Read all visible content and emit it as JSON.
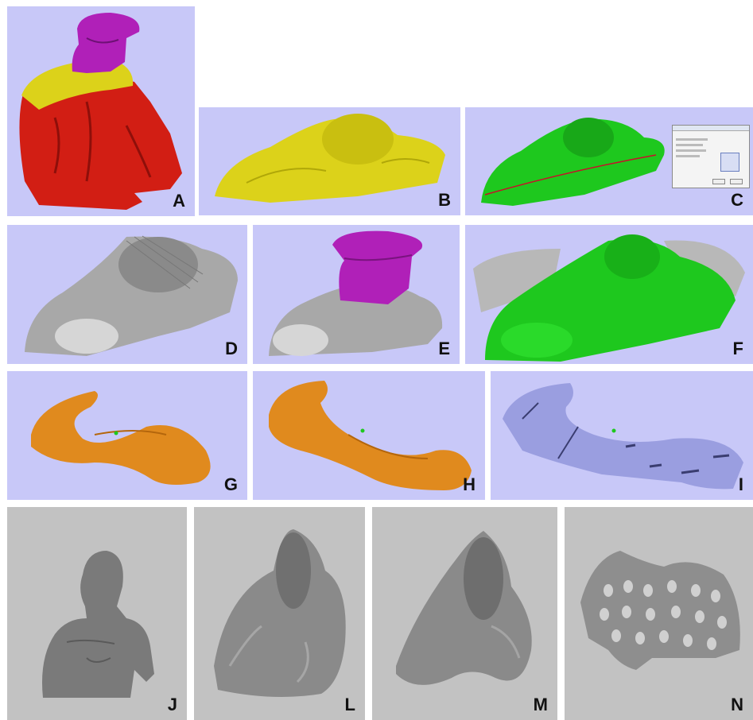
{
  "colors": {
    "lavender_bg": "#c8c8f8",
    "gray_bg": "#c2c2c2",
    "head_magenta": "#b020b8",
    "shoulder_yellow": "#dcd21a",
    "arm_red": "#d21e14",
    "shell_green": "#1ec81e",
    "shell_gray": "#a8a8a8",
    "brace_orange": "#e08a1e",
    "brace_blue": "#9a9ee0"
  },
  "panels": {
    "A": {
      "label": "A"
    },
    "B": {
      "label": "B"
    },
    "C": {
      "label": "C"
    },
    "D": {
      "label": "D"
    },
    "E": {
      "label": "E"
    },
    "F": {
      "label": "F"
    },
    "G": {
      "label": "G"
    },
    "H": {
      "label": "H"
    },
    "I": {
      "label": "I"
    },
    "J": {
      "label": "J"
    },
    "L": {
      "label": "L"
    },
    "M": {
      "label": "M"
    },
    "N": {
      "label": "N"
    }
  }
}
